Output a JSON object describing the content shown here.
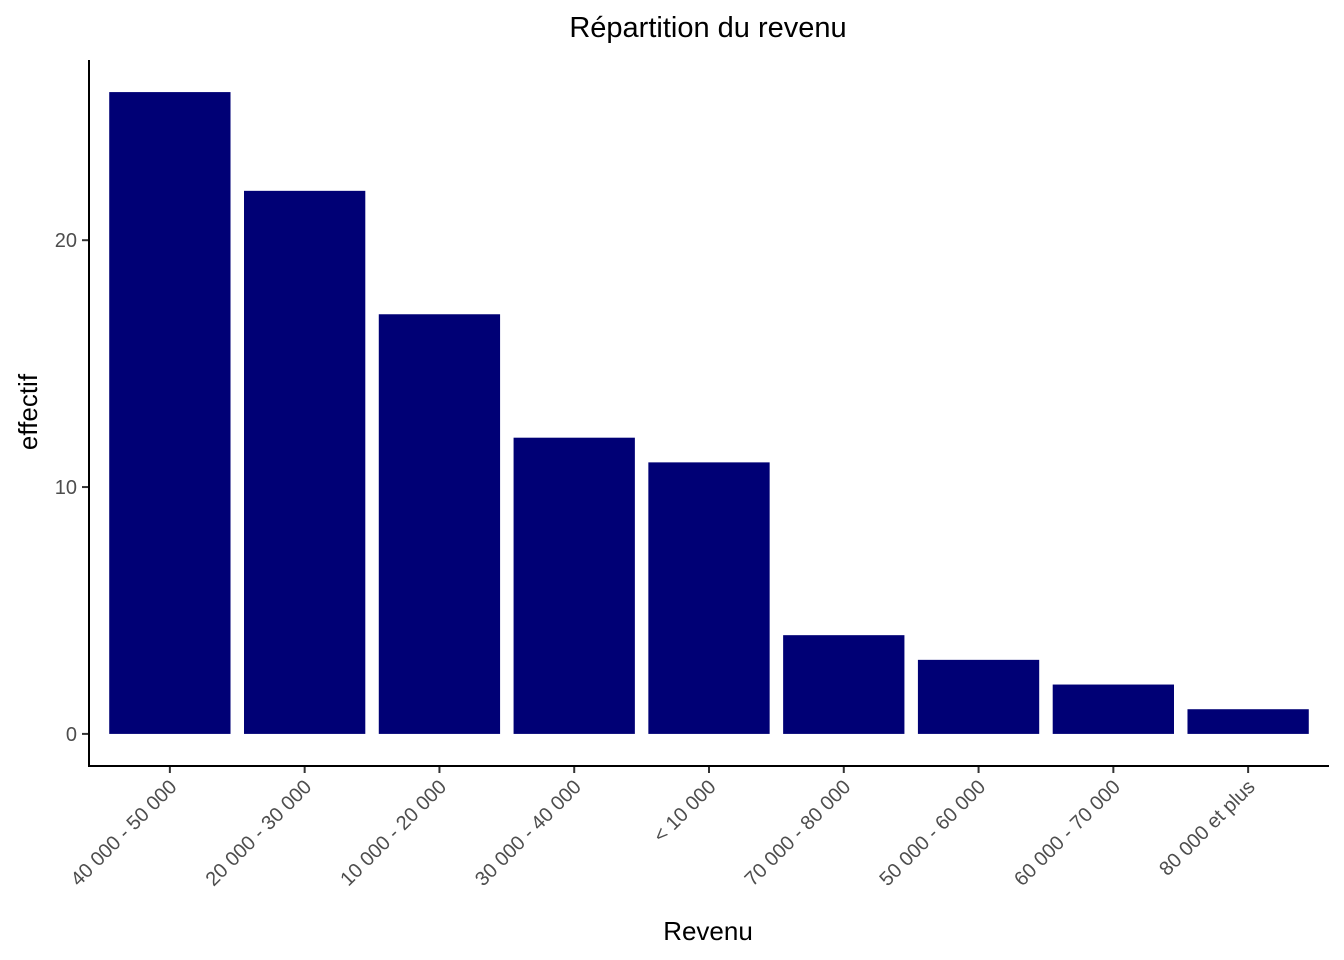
{
  "chart_data": {
    "type": "bar",
    "title": "Répartition du revenu",
    "xlabel": "Revenu",
    "ylabel": "effectif",
    "categories": [
      "40 000 - 50 000",
      "20 000 - 30 000",
      "10 000 - 20 000",
      "30 000 - 40 000",
      "< 10 000",
      "70 000 - 80 000",
      "50 000 - 60 000",
      "60 000 - 70 000",
      "80 000 et plus"
    ],
    "values": [
      26,
      22,
      17,
      12,
      11,
      4,
      3,
      2,
      1
    ],
    "yticks": [
      0,
      10,
      20
    ],
    "ylim": [
      -1.3,
      27.3
    ],
    "grid": false,
    "legend": "none",
    "bar_color": "#000075"
  }
}
